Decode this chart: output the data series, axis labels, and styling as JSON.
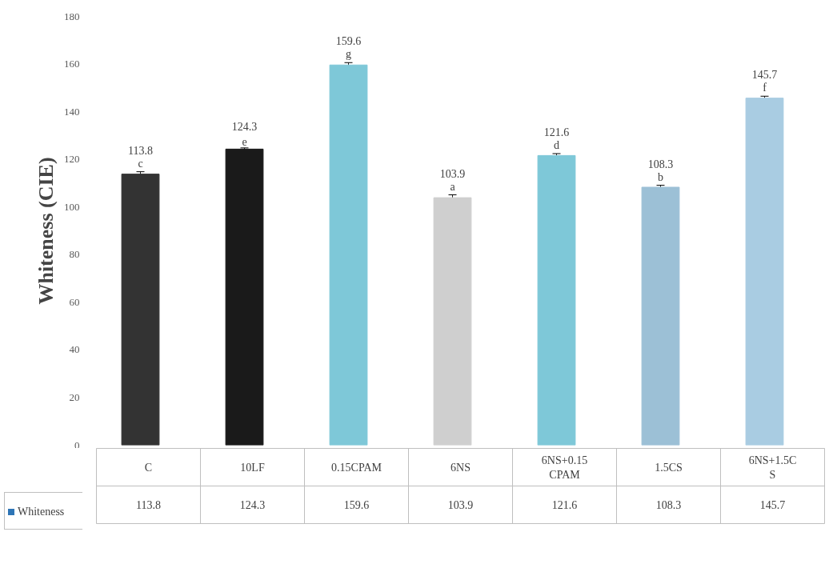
{
  "chart_data": {
    "type": "bar",
    "ylabel": "Whiteness (CIE)",
    "categories": [
      "C",
      "10LF",
      "0.15CPAM",
      "6NS",
      "6NS+0.15CPAM",
      "1.5CS",
      "6NS+1.5CS"
    ],
    "series": [
      {
        "name": "Whiteness",
        "color": "#2e75b6",
        "colors": [
          "#333333",
          "#1a1a1a",
          "#7ec8d8",
          "#cfcfcf",
          "#7ec8d8",
          "#9cc0d6",
          "#a9cce2"
        ],
        "values": [
          113.8,
          124.3,
          159.6,
          103.9,
          121.6,
          108.3,
          145.7
        ],
        "errors": [
          1,
          0.5,
          1,
          1.2,
          0.8,
          0.8,
          0.8
        ],
        "value_labels": [
          "113.8",
          "124.3",
          "159.6",
          "103.9",
          "121.6",
          "108.3",
          "145.7"
        ]
      }
    ],
    "ylim": [
      0,
      180
    ],
    "yticks": [
      0,
      20,
      40,
      60,
      80,
      100,
      120,
      140,
      160,
      180
    ],
    "data_labels": true,
    "legend": "bottom",
    "grid": false,
    "annotations": [
      "c",
      "e",
      "g",
      "a",
      "d",
      "b",
      "f"
    ]
  }
}
